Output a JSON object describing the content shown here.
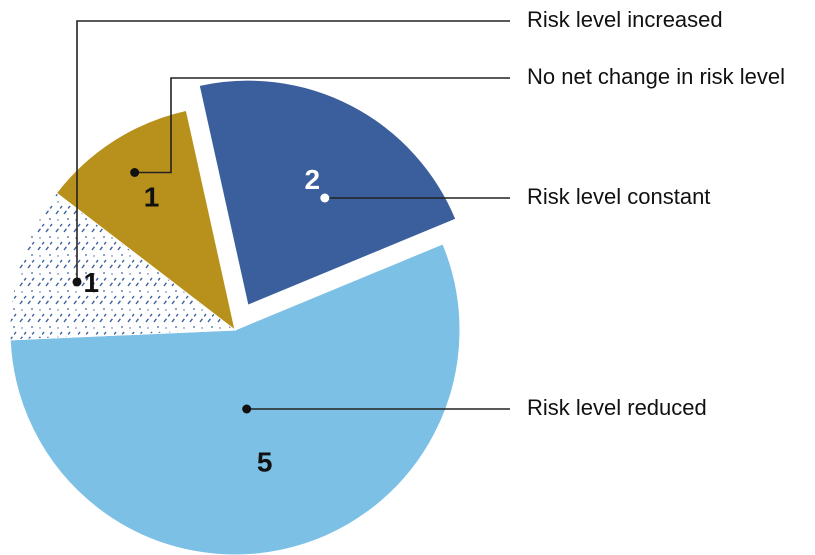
{
  "chart_data": {
    "type": "pie",
    "slices": [
      {
        "label": "Risk level constant",
        "value": 2,
        "color": "#3b5f9c",
        "pattern": "solid",
        "text_color": "#ffffff",
        "exploded": true
      },
      {
        "label": "Risk level reduced",
        "value": 5,
        "color": "#7cc0e5",
        "pattern": "solid",
        "text_color": "#111111",
        "exploded": false
      },
      {
        "label": "Risk level increased",
        "value": 1,
        "color": "#ffffff",
        "pattern": "dashed-hatch",
        "pattern_color": "#3b5f9c",
        "text_color": "#111111",
        "exploded": false
      },
      {
        "label": "No net change in risk level",
        "value": 1,
        "color": "#b8911d",
        "pattern": "solid",
        "text_color": "#111111",
        "exploded": false
      }
    ],
    "legend": "right"
  }
}
